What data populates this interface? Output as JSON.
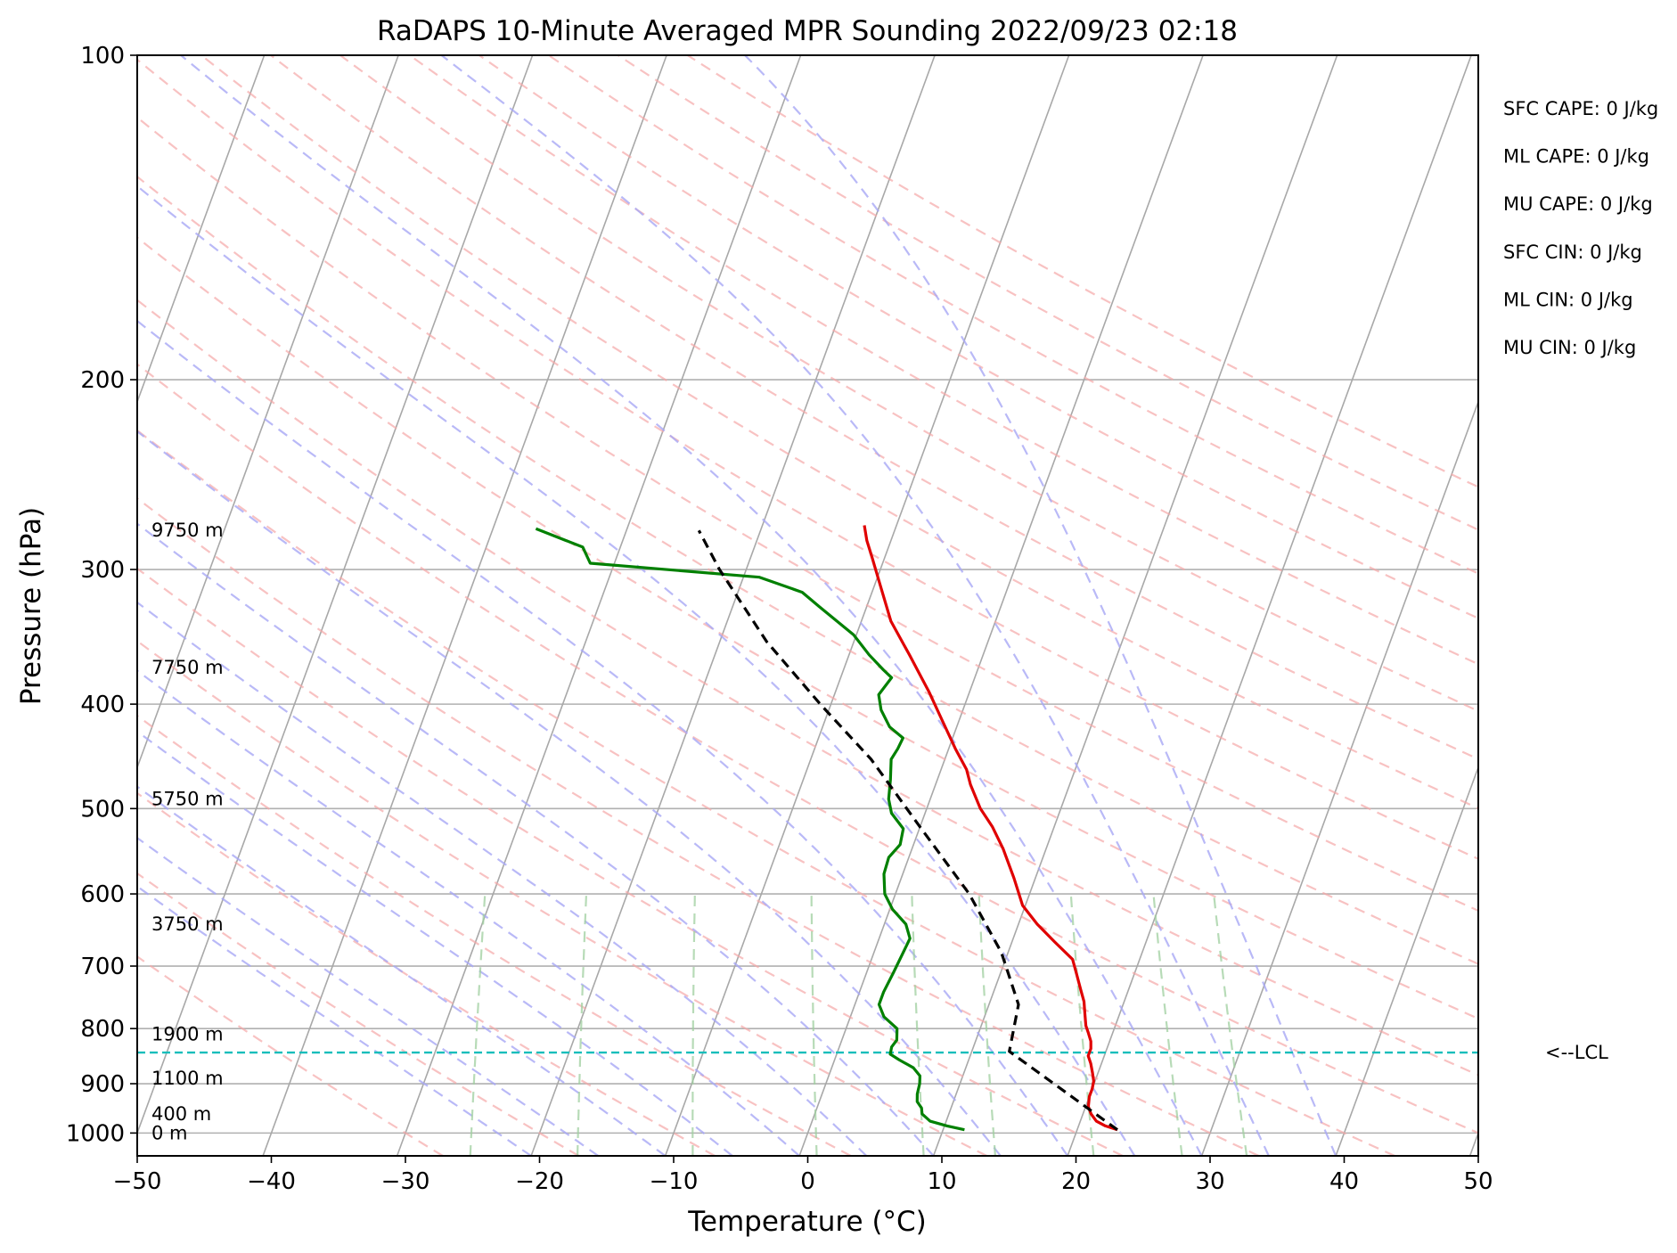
{
  "chart_data": {
    "type": "line",
    "diagram": "skew-t log-p",
    "title": "RaDAPS 10-Minute Averaged MPR Sounding 2022/09/23 02:18",
    "xlabel": "Temperature (°C)",
    "ylabel": "Pressure (hPa)",
    "xlim": [
      -50,
      50
    ],
    "ylim": [
      1050,
      100
    ],
    "y_scale": "log",
    "grid": true,
    "x_ticks": [
      "−50",
      "−40",
      "−30",
      "−20",
      "−10",
      "0",
      "10",
      "20",
      "30",
      "40",
      "50"
    ],
    "y_ticks": [
      "100",
      "200",
      "300",
      "400",
      "500",
      "600",
      "700",
      "800",
      "900",
      "1000"
    ],
    "height_labels": [
      {
        "p": 1000,
        "text": "0 m"
      },
      {
        "p": 960,
        "text": "400 m"
      },
      {
        "p": 890,
        "text": "1100 m"
      },
      {
        "p": 810,
        "text": "1900 m"
      },
      {
        "p": 640,
        "text": "3750 m"
      },
      {
        "p": 490,
        "text": "5750 m"
      },
      {
        "p": 370,
        "text": "7750 m"
      },
      {
        "p": 276,
        "text": "9750 m"
      }
    ],
    "series": [
      {
        "color": "#e00000",
        "points": [
          [
            993,
            23.0
          ],
          [
            985,
            22.0
          ],
          [
            975,
            21.2
          ],
          [
            960,
            20.6
          ],
          [
            945,
            20.2
          ],
          [
            925,
            20.0
          ],
          [
            910,
            20.0
          ],
          [
            895,
            19.9
          ],
          [
            880,
            19.6
          ],
          [
            862,
            19.2
          ],
          [
            848,
            18.8
          ],
          [
            835,
            18.8
          ],
          [
            822,
            18.6
          ],
          [
            808,
            18.2
          ],
          [
            795,
            17.8
          ],
          [
            775,
            17.4
          ],
          [
            755,
            17.0
          ],
          [
            735,
            16.4
          ],
          [
            712,
            15.7
          ],
          [
            690,
            15.0
          ],
          [
            665,
            13.2
          ],
          [
            640,
            11.4
          ],
          [
            615,
            9.8
          ],
          [
            580,
            8.4
          ],
          [
            545,
            6.8
          ],
          [
            520,
            5.4
          ],
          [
            500,
            4.0
          ],
          [
            475,
            2.6
          ],
          [
            460,
            1.9
          ],
          [
            440,
            0.5
          ],
          [
            415,
            -1.2
          ],
          [
            390,
            -3.0
          ],
          [
            360,
            -5.5
          ],
          [
            335,
            -7.8
          ],
          [
            310,
            -9.6
          ],
          [
            293,
            -10.9
          ],
          [
            282,
            -11.8
          ],
          [
            273,
            -12.4
          ]
        ]
      },
      {
        "color": "#008000",
        "points": [
          [
            993,
            11.6
          ],
          [
            985,
            10.2
          ],
          [
            975,
            8.8
          ],
          [
            960,
            8.0
          ],
          [
            948,
            7.8
          ],
          [
            935,
            7.3
          ],
          [
            920,
            7.1
          ],
          [
            900,
            7.0
          ],
          [
            885,
            6.8
          ],
          [
            870,
            6.1
          ],
          [
            855,
            4.8
          ],
          [
            845,
            4.0
          ],
          [
            832,
            3.9
          ],
          [
            820,
            4.1
          ],
          [
            800,
            3.8
          ],
          [
            780,
            2.5
          ],
          [
            760,
            1.8
          ],
          [
            740,
            1.8
          ],
          [
            710,
            2.0
          ],
          [
            660,
            2.3
          ],
          [
            640,
            1.6
          ],
          [
            620,
            0.2
          ],
          [
            600,
            -0.8
          ],
          [
            575,
            -1.4
          ],
          [
            555,
            -1.5
          ],
          [
            540,
            -1.0
          ],
          [
            522,
            -1.2
          ],
          [
            505,
            -2.5
          ],
          [
            490,
            -3.1
          ],
          [
            470,
            -3.5
          ],
          [
            450,
            -4.0
          ],
          [
            440,
            -3.8
          ],
          [
            430,
            -3.7
          ],
          [
            420,
            -5.0
          ],
          [
            405,
            -6.1
          ],
          [
            392,
            -6.7
          ],
          [
            378,
            -6.2
          ],
          [
            372,
            -7.0
          ],
          [
            360,
            -8.5
          ],
          [
            345,
            -10.2
          ],
          [
            325,
            -13.5
          ],
          [
            315,
            -15.2
          ],
          [
            305,
            -18.8
          ],
          [
            296,
            -31.8
          ],
          [
            286,
            -32.8
          ],
          [
            275,
            -36.8
          ]
        ]
      },
      {
        "color": "#000000",
        "dashed": true,
        "points": [
          [
            993,
            23.0
          ],
          [
            840,
            12.8
          ],
          [
            760,
            12.2
          ],
          [
            680,
            9.5
          ],
          [
            600,
            5.5
          ],
          [
            520,
            0.0
          ],
          [
            450,
            -5.5
          ],
          [
            400,
            -10.8
          ],
          [
            350,
            -16.5
          ],
          [
            300,
            -22.0
          ],
          [
            276,
            -24.6
          ]
        ]
      }
    ],
    "lcl": {
      "p": 842,
      "label": "<--LCL"
    },
    "indices": [
      "SFC CAPE: 0 J/kg",
      "ML CAPE: 0 J/kg",
      "MU CAPE: 0 J/kg",
      "SFC CIN: 0 J/kg",
      "ML CIN: 0 J/kg",
      "MU CIN: 0 J/kg"
    ]
  }
}
